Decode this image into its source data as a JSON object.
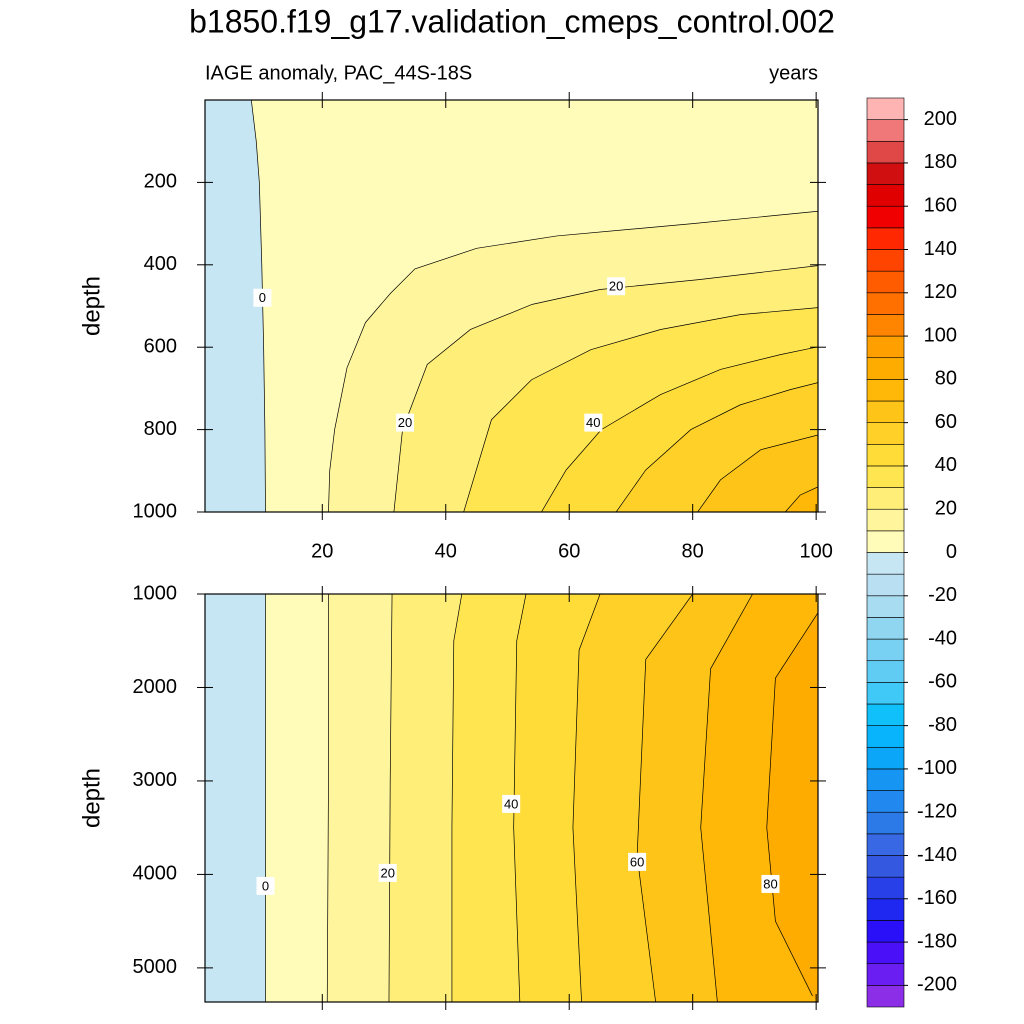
{
  "title": "b1850.f19_g17.validation_cmeps_control.002",
  "colorbar": {
    "levels": [
      -200,
      -190,
      -180,
      -170,
      -160,
      -150,
      -140,
      -130,
      -120,
      -110,
      -100,
      -90,
      -80,
      -70,
      -60,
      -50,
      -40,
      -30,
      -20,
      -10,
      0,
      10,
      20,
      30,
      40,
      50,
      60,
      70,
      80,
      90,
      100,
      110,
      120,
      130,
      140,
      150,
      160,
      170,
      180,
      190,
      200
    ],
    "colors": [
      "#8c2ee8",
      "#6a1ef2",
      "#4a10f8",
      "#2a10f8",
      "#1e28f0",
      "#2840e8",
      "#3458e0",
      "#3868e4",
      "#2c7ae8",
      "#2088ee",
      "#1696f2",
      "#0ca6f8",
      "#08b4fc",
      "#10c0fa",
      "#40c8f6",
      "#60ccf4",
      "#78d0f2",
      "#90d6f0",
      "#a8dcf0",
      "#b8e0f2",
      "#c6e6f4",
      "#fffbb8",
      "#fff59c",
      "#ffee78",
      "#ffe650",
      "#ffdc38",
      "#ffd028",
      "#ffc418",
      "#ffb808",
      "#ffac00",
      "#ffa000",
      "#ff8400",
      "#ff7000",
      "#ff5c00",
      "#ff4400",
      "#ff2800",
      "#f00000",
      "#e00000",
      "#d01010",
      "#e04848",
      "#f07878",
      "#ffb4b4"
    ],
    "ticks": [
      -200,
      -180,
      -160,
      -140,
      -120,
      -100,
      -80,
      -60,
      -40,
      -20,
      0,
      20,
      40,
      60,
      80,
      100,
      120,
      140,
      160,
      180,
      200
    ]
  },
  "chart_data": [
    {
      "type": "contour",
      "left_title": "IAGE anomaly, PAC_44S-18S",
      "right_title": "years",
      "ylabel": "depth",
      "xlim": [
        1,
        100.3
      ],
      "ylim": [
        0,
        1000
      ],
      "y_reverse": true,
      "xticks": [
        20,
        40,
        60,
        80,
        100
      ],
      "show_xtick_labels": true,
      "yticks": [
        200,
        400,
        600,
        800,
        1000
      ],
      "contours": [
        {
          "level": 0,
          "x": [
            8.5,
            9.3,
            9.8,
            10.2,
            10.5,
            10.7,
            10.8
          ],
          "y": [
            0,
            100,
            200,
            400,
            600,
            800,
            1000
          ]
        },
        {
          "level": 10,
          "x": [
            21,
            21.2,
            22,
            24,
            27,
            31,
            35,
            45,
            58,
            80,
            100.3
          ],
          "y": [
            1000,
            900,
            800,
            650,
            540,
            470,
            410,
            360,
            330,
            300,
            270
          ]
        },
        {
          "level": 20,
          "x": [
            31.6,
            33,
            37,
            44,
            54,
            65,
            81,
            100.3
          ],
          "y": [
            1000,
            800,
            642,
            557,
            496,
            460,
            436,
            402
          ]
        },
        {
          "level": 30,
          "x": [
            42.9,
            47.4,
            53.9,
            63.5,
            74.8,
            87.7,
            100.3
          ],
          "y": [
            1000,
            776,
            679,
            606,
            557,
            521,
            504
          ]
        },
        {
          "level": 40,
          "x": [
            55.5,
            59.5,
            65.2,
            74.8,
            84.5,
            94.2,
            100.3
          ],
          "y": [
            1000,
            898,
            800,
            715,
            654,
            618,
            599
          ]
        },
        {
          "level": 50,
          "x": [
            67.6,
            72.4,
            79.7,
            87.7,
            95.8,
            100.3
          ],
          "y": [
            1000,
            898,
            800,
            740,
            703,
            686
          ]
        },
        {
          "level": 60,
          "x": [
            80.8,
            84.5,
            91,
            100.3
          ],
          "y": [
            1000,
            922,
            849,
            813
          ]
        },
        {
          "level": 70,
          "x": [
            95,
            97.4,
            100.3
          ],
          "y": [
            1000,
            959,
            939
          ]
        }
      ],
      "contour_labels": [
        {
          "level": 0,
          "x": 10.3,
          "y": 480
        },
        {
          "level": 20,
          "x": 67.6,
          "y": 452
        },
        {
          "level": 20,
          "x": 33.4,
          "y": 783
        },
        {
          "level": 40,
          "x": 63.9,
          "y": 783
        }
      ]
    },
    {
      "type": "contour",
      "ylabel": "depth",
      "xlim": [
        1,
        100.3
      ],
      "ylim": [
        1000,
        5365
      ],
      "y_reverse": true,
      "xticks": [
        20,
        40,
        60,
        80,
        100
      ],
      "show_xtick_labels": false,
      "yticks": [
        1000,
        2000,
        3000,
        4000,
        5000
      ],
      "contours": [
        {
          "level": 0,
          "x": [
            10.8,
            10.8,
            10.8
          ],
          "y": [
            1000,
            3000,
            5365
          ]
        },
        {
          "level": 10,
          "x": [
            21,
            21,
            20.8
          ],
          "y": [
            1000,
            3000,
            5365
          ]
        },
        {
          "level": 20,
          "x": [
            31.3,
            31,
            30.8
          ],
          "y": [
            1000,
            3000,
            5365
          ]
        },
        {
          "level": 30,
          "x": [
            42.6,
            41.3,
            41,
            41
          ],
          "y": [
            1000,
            1500,
            3500,
            5365
          ]
        },
        {
          "level": 40,
          "x": [
            53,
            51.5,
            51,
            52
          ],
          "y": [
            1000,
            1500,
            3500,
            5365
          ]
        },
        {
          "level": 50,
          "x": [
            65,
            61.6,
            60.6,
            62
          ],
          "y": [
            1000,
            1600,
            3500,
            5365
          ]
        },
        {
          "level": 60,
          "x": [
            80,
            72.4,
            71,
            74
          ],
          "y": [
            1000,
            1700,
            3800,
            5365
          ]
        },
        {
          "level": 70,
          "x": [
            89.7,
            82.9,
            81.3,
            84
          ],
          "y": [
            1000,
            1800,
            3500,
            5365
          ]
        },
        {
          "level": 80,
          "x": [
            100.3,
            93.4,
            92,
            93.4,
            99.4
          ],
          "y": [
            1200,
            1900,
            3500,
            4500,
            5300
          ]
        }
      ],
      "contour_labels": [
        {
          "level": 0,
          "x": 10.8,
          "y": 4123
        },
        {
          "level": 20,
          "x": 30.6,
          "y": 3984
        },
        {
          "level": 40,
          "x": 50.6,
          "y": 3246
        },
        {
          "level": 60,
          "x": 71,
          "y": 3866
        },
        {
          "level": 80,
          "x": 92.6,
          "y": 4102
        }
      ]
    }
  ]
}
